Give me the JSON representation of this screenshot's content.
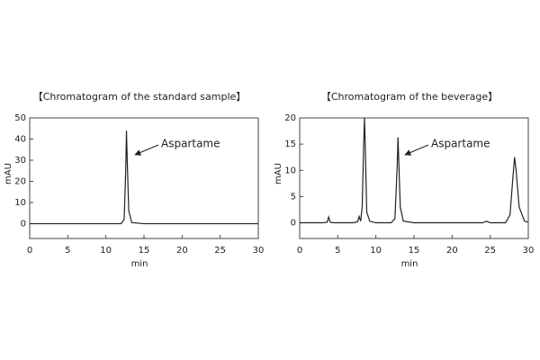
{
  "chart_data": [
    {
      "type": "line",
      "title": "【Chromatogram of the standard sample】",
      "xlabel": "min",
      "ylabel": "mAU",
      "annotation": "Aspartame",
      "x": [
        0,
        5,
        10,
        12,
        12.4,
        12.6,
        12.7,
        12.8,
        13.0,
        13.4,
        15,
        20,
        25,
        30
      ],
      "values": [
        0,
        0,
        0,
        0,
        2,
        25,
        44,
        30,
        6,
        0.5,
        0,
        0,
        0,
        0
      ],
      "color": "#222222",
      "xlim": [
        0,
        30
      ],
      "xticks": [
        0,
        5,
        10,
        15,
        20,
        25,
        30
      ],
      "ylim": [
        -7,
        50
      ],
      "yticks": [
        0,
        10,
        20,
        30,
        40,
        50
      ]
    },
    {
      "type": "line",
      "title": "【Chromatogram of the beverage】",
      "xlabel": "min",
      "ylabel": "mAU",
      "annotation": "Aspartame",
      "x": [
        0,
        3,
        3.6,
        3.8,
        4.0,
        4.5,
        7,
        7.6,
        7.8,
        8.0,
        8.2,
        8.4,
        8.5,
        8.6,
        8.8,
        9.2,
        10,
        12,
        12.5,
        12.8,
        12.9,
        13.0,
        13.2,
        13.6,
        15,
        20,
        24,
        24.5,
        25,
        27,
        27.6,
        28,
        28.2,
        28.4,
        28.8,
        29.5,
        30
      ],
      "values": [
        0,
        0,
        0.1,
        1.1,
        0.1,
        0,
        0,
        0.2,
        1.2,
        0.3,
        3,
        15,
        20,
        15,
        2,
        0.3,
        0,
        0,
        0.8,
        11,
        16.3,
        12,
        3,
        0.3,
        0,
        0,
        0,
        0.3,
        0,
        0,
        1.5,
        9,
        12.5,
        10,
        3,
        0.3,
        0.1
      ],
      "color": "#222222",
      "xlim": [
        0,
        30
      ],
      "xticks": [
        0,
        5,
        10,
        15,
        20,
        25,
        30
      ],
      "ylim": [
        -3,
        20
      ],
      "yticks": [
        0,
        5,
        10,
        15,
        20
      ]
    }
  ]
}
